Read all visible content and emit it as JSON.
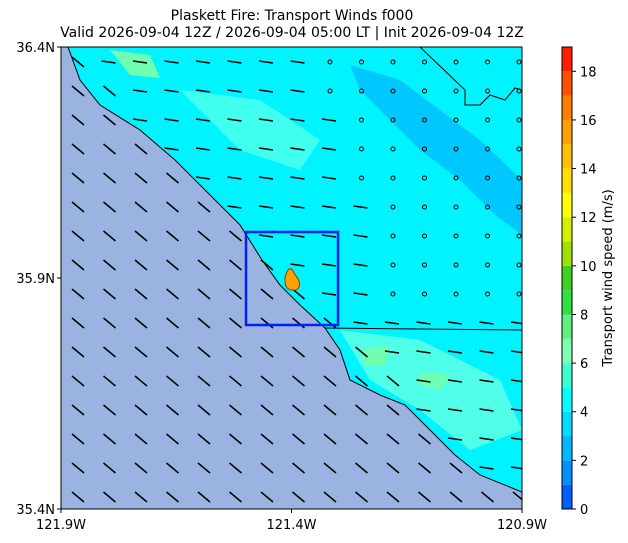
{
  "map": {
    "title": "Plaskett Fire: Transport Winds f000",
    "subtitle": "Valid 2026-09-04 12Z / 2026-09-04 05:00 LT | Init 2026-09-04 12Z",
    "xlim": [
      -121.9,
      -120.9
    ],
    "ylim": [
      35.4,
      36.4
    ],
    "xticks": [
      {
        "value": -121.9,
        "label": "121.9W"
      },
      {
        "value": -121.4,
        "label": "121.4W"
      },
      {
        "value": -120.9,
        "label": "120.9W"
      }
    ],
    "yticks": [
      {
        "value": 35.4,
        "label": "35.4N"
      },
      {
        "value": 35.9,
        "label": "35.9N"
      },
      {
        "value": 36.4,
        "label": "36.4N"
      }
    ],
    "colorbar": {
      "label": "Transport wind speed (m/s)",
      "lim": [
        0,
        19
      ],
      "ticks": [
        0,
        2,
        4,
        6,
        8,
        10,
        12,
        14,
        16,
        18
      ],
      "colors": [
        "#0060ff",
        "#0090ff",
        "#00b8ff",
        "#00dcff",
        "#00ffff",
        "#40ffd0",
        "#80ffb0",
        "#60f080",
        "#30e040",
        "#40d020",
        "#a0e000",
        "#d0f000",
        "#ffff00",
        "#ffe000",
        "#ffc000",
        "#ffa000",
        "#ff8000",
        "#ff5000",
        "#ff2000"
      ]
    }
  }
}
